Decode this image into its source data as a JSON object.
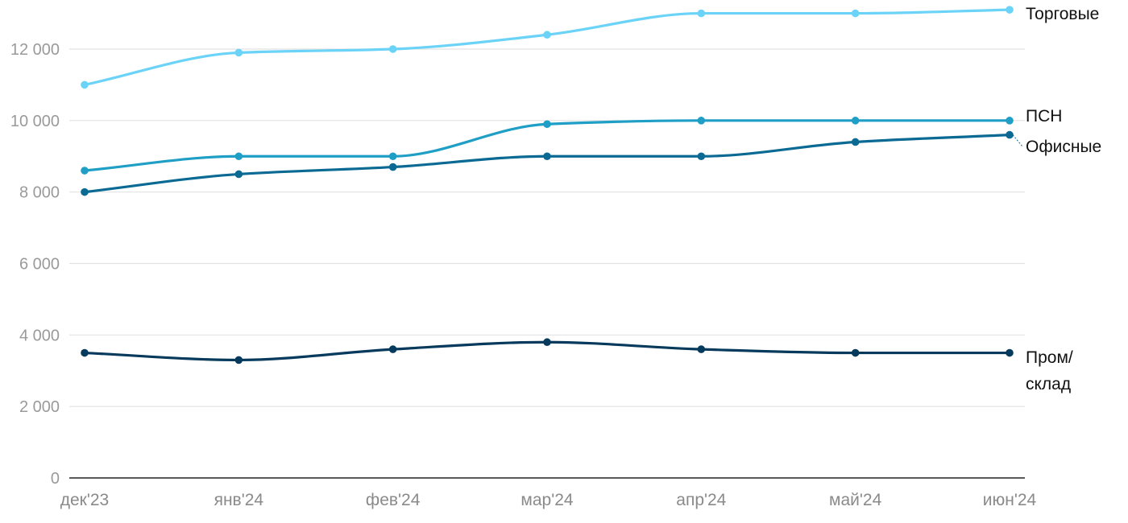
{
  "chart_data": {
    "type": "line",
    "categories": [
      "дек'23",
      "янв'24",
      "фев'24",
      "мар'24",
      "апр'24",
      "май'24",
      "июн'24"
    ],
    "ylim": [
      0,
      13000
    ],
    "yticks": [
      0,
      2000,
      4000,
      6000,
      8000,
      10000,
      12000
    ],
    "ytick_labels": [
      "0",
      "2 000",
      "4 000",
      "6 000",
      "8 000",
      "10 000",
      "12 000"
    ],
    "grid": true,
    "series": [
      {
        "name": "Торговые",
        "label_lines": [
          "Торговые"
        ],
        "color": "#6bd3f7",
        "values": [
          11000,
          11900,
          12000,
          12400,
          13000,
          13000,
          13100
        ]
      },
      {
        "name": "ПСН",
        "label_lines": [
          "ПСН"
        ],
        "color": "#1f9ec6",
        "values": [
          8600,
          9000,
          9000,
          9900,
          10000,
          10000,
          10000
        ]
      },
      {
        "name": "Офисные",
        "label_lines": [
          "Офисные"
        ],
        "color": "#0a6a93",
        "values": [
          8000,
          8500,
          8700,
          9000,
          9000,
          9400,
          9600
        ]
      },
      {
        "name": "Пром/склад",
        "label_lines": [
          "Пром/",
          "склад"
        ],
        "color": "#063a5c",
        "values": [
          3500,
          3300,
          3600,
          3800,
          3600,
          3500,
          3500
        ]
      }
    ]
  }
}
